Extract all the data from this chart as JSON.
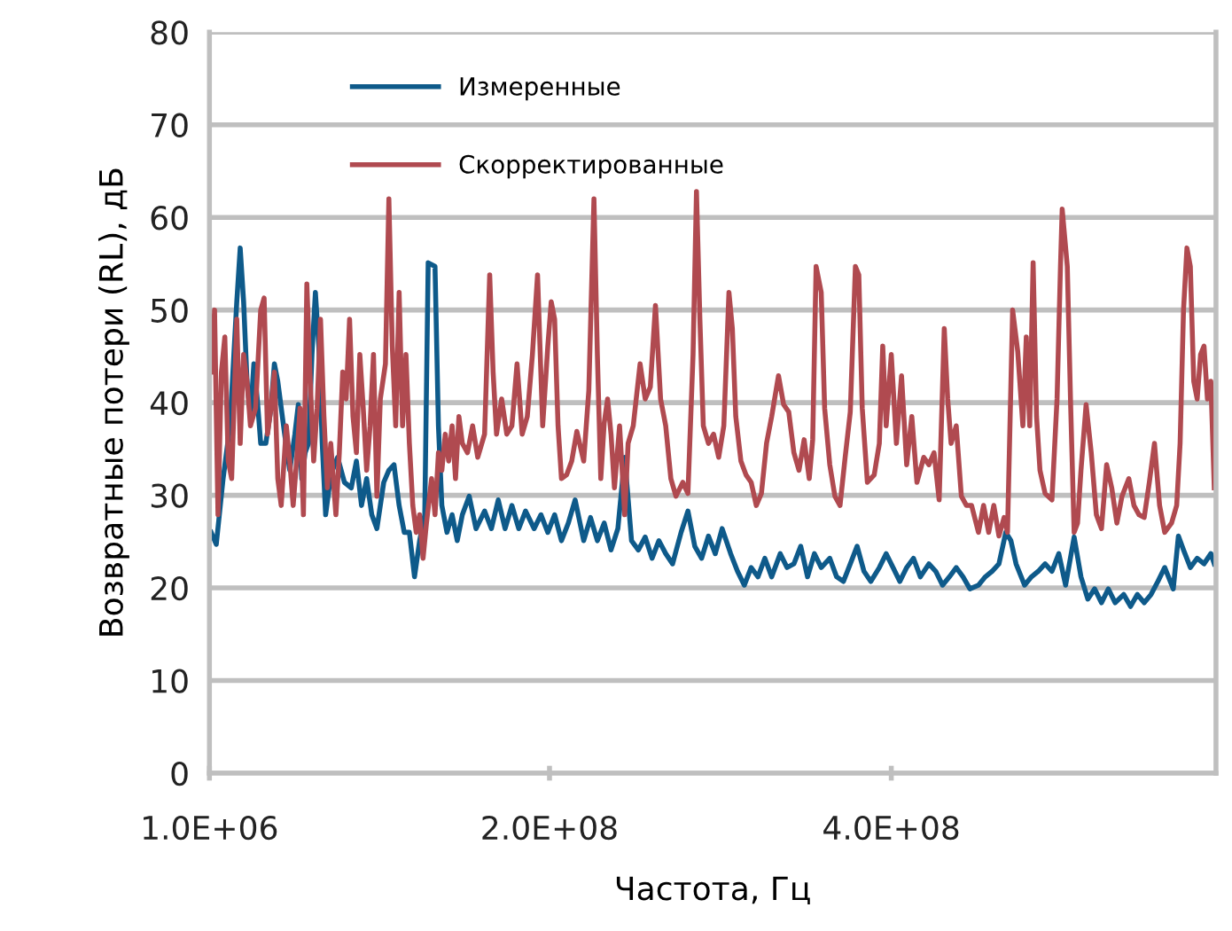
{
  "chart_data": {
    "type": "line",
    "xlabel": "Частота, Гц",
    "ylabel": "Возвратные потери (RL), дБ",
    "xlim": [
      1000000.0,
      590000000.0
    ],
    "xticks": [
      {
        "value": 1000000.0,
        "label": "1.0E+06"
      },
      {
        "value": 200000000.0,
        "label": "2.0E+08"
      },
      {
        "value": 400000000.0,
        "label": "4.0E+08"
      }
    ],
    "ylim": [
      0,
      80
    ],
    "yticks": [
      0,
      10,
      20,
      30,
      40,
      50,
      60,
      70,
      80
    ],
    "grid": "y",
    "legend": "top",
    "marker": "none",
    "line_style": "solid",
    "series": [
      {
        "name": "Измеренные",
        "color": "#0e5a8a",
        "x": [
          2000000.0,
          5000000.0,
          9000000.0,
          13000000.0,
          17000000.0,
          19000000.0,
          21000000.0,
          23000000.0,
          25000000.0,
          27000000.0,
          29000000.0,
          31000000.0,
          34000000.0,
          37000000.0,
          39000000.0,
          41000000.0,
          45000000.0,
          48000000.0,
          51000000.0,
          53000000.0,
          55000000.0,
          57000000.0,
          59000000.0,
          61000000.0,
          63000000.0,
          65000000.0,
          67000000.0,
          69000000.0,
          72000000.0,
          76000000.0,
          80000000.0,
          84000000.0,
          87000000.0,
          90000000.0,
          93000000.0,
          96000000.0,
          99000000.0,
          103000000.0,
          106000000.0,
          109000000.0,
          112000000.0,
          115000000.0,
          118000000.0,
          121000000.0,
          124000000.0,
          127000000.0,
          129000000.0,
          133000000.0,
          135000000.0,
          137000000.0,
          140000000.0,
          143000000.0,
          146000000.0,
          149000000.0,
          153000000.0,
          157000000.0,
          162000000.0,
          166000000.0,
          170000000.0,
          174000000.0,
          178000000.0,
          182000000.0,
          186000000.0,
          191000000.0,
          195000000.0,
          199000000.0,
          203000000.0,
          207000000.0,
          211000000.0,
          215000000.0,
          220000000.0,
          224000000.0,
          228000000.0,
          232000000.0,
          236000000.0,
          240000000.0,
          244000000.0,
          248000000.0,
          252000000.0,
          256000000.0,
          260000000.0,
          264000000.0,
          268000000.0,
          272000000.0,
          277000000.0,
          281000000.0,
          285000000.0,
          289000000.0,
          293000000.0,
          297000000.0,
          301000000.0,
          306000000.0,
          310000000.0,
          314000000.0,
          318000000.0,
          322000000.0,
          326000000.0,
          330000000.0,
          335000000.0,
          339000000.0,
          343000000.0,
          347000000.0,
          351000000.0,
          355000000.0,
          359000000.0,
          364000000.0,
          368000000.0,
          372000000.0,
          376000000.0,
          380000000.0,
          384000000.0,
          388000000.0,
          393000000.0,
          397000000.0,
          401000000.0,
          405000000.0,
          409000000.0,
          413000000.0,
          417000000.0,
          422000000.0,
          426000000.0,
          430000000.0,
          434000000.0,
          438000000.0,
          442000000.0,
          446000000.0,
          451000000.0,
          455000000.0,
          459000000.0,
          463000000.0,
          467000000.0,
          470000000.0,
          473000000.0,
          478000000.0,
          482000000.0,
          486000000.0,
          490000000.0,
          494000000.0,
          498000000.0,
          502000000.0,
          507000000.0,
          511000000.0,
          515000000.0,
          519000000.0,
          523000000.0,
          527000000.0,
          531000000.0,
          536000000.0,
          540000000.0,
          544000000.0,
          548000000.0,
          552000000.0,
          556000000.0,
          560000000.0,
          565000000.0,
          568000000.0,
          571000000.0,
          575000000.0,
          579000000.0,
          583000000.0,
          587000000.0,
          589000000.0
        ],
        "values": [
          26.0,
          24.7,
          31.8,
          37.5,
          50.9,
          56.7,
          50.9,
          42.3,
          38.5,
          44.2,
          40.4,
          35.6,
          35.6,
          39.4,
          44.2,
          42.3,
          36.6,
          32.7,
          36.6,
          39.8,
          31.8,
          34.6,
          35.6,
          45.2,
          51.9,
          46.1,
          35.6,
          27.9,
          32.2,
          34.1,
          31.4,
          30.8,
          33.7,
          28.9,
          31.8,
          27.9,
          26.4,
          31.4,
          32.7,
          33.3,
          28.9,
          26.0,
          26.0,
          21.2,
          25.1,
          27.9,
          55.1,
          54.7,
          37.5,
          28.9,
          26.0,
          27.9,
          25.1,
          27.9,
          29.9,
          26.4,
          28.3,
          26.4,
          29.5,
          26.4,
          28.9,
          26.4,
          28.3,
          26.4,
          27.9,
          26.0,
          27.9,
          25.1,
          27.0,
          29.5,
          25.1,
          27.6,
          25.1,
          27.0,
          24.1,
          26.4,
          34.1,
          25.1,
          24.1,
          25.5,
          23.2,
          25.1,
          23.7,
          22.6,
          26.0,
          28.3,
          24.5,
          23.2,
          25.6,
          23.7,
          26.4,
          23.7,
          21.8,
          20.3,
          22.2,
          21.2,
          23.2,
          21.2,
          23.7,
          22.2,
          22.6,
          24.5,
          21.2,
          23.7,
          22.2,
          23.2,
          21.2,
          20.7,
          22.6,
          24.5,
          21.8,
          20.7,
          22.2,
          23.7,
          22.2,
          20.7,
          22.2,
          23.2,
          21.2,
          22.6,
          21.8,
          20.3,
          21.2,
          22.2,
          21.2,
          19.9,
          20.3,
          21.2,
          21.8,
          22.6,
          26.0,
          25.1,
          22.6,
          20.3,
          21.2,
          21.8,
          22.6,
          21.8,
          23.7,
          20.3,
          25.5,
          21.2,
          18.8,
          19.9,
          18.4,
          19.9,
          18.4,
          19.3,
          18.0,
          19.3,
          18.4,
          19.3,
          20.7,
          22.2,
          19.9,
          25.6,
          24.1,
          22.2,
          23.2,
          22.6,
          23.7,
          22.6
        ]
      },
      {
        "name": "Скорректированные",
        "color": "#b04a50",
        "x": [
          2000000.0,
          4000000.0,
          6000000.0,
          8000000.0,
          10000000.0,
          12000000.0,
          14000000.0,
          17000000.0,
          19000000.0,
          21000000.0,
          23000000.0,
          25000000.0,
          28000000.0,
          31000000.0,
          33000000.0,
          35000000.0,
          37000000.0,
          39000000.0,
          41000000.0,
          43000000.0,
          46000000.0,
          48000000.0,
          50000000.0,
          52000000.0,
          54000000.0,
          56000000.0,
          58000000.0,
          60000000.0,
          62000000.0,
          64000000.0,
          66000000.0,
          68000000.0,
          70000000.0,
          72000000.0,
          75000000.0,
          77000000.0,
          79000000.0,
          81000000.0,
          83000000.0,
          85000000.0,
          87000000.0,
          89000000.0,
          91000000.0,
          93000000.0,
          95000000.0,
          97000000.0,
          99000000.0,
          101000000.0,
          104000000.0,
          106000000.0,
          108000000.0,
          110000000.0,
          112000000.0,
          114000000.0,
          116000000.0,
          118000000.0,
          120000000.0,
          122000000.0,
          124000000.0,
          126000000.0,
          128000000.0,
          131000000.0,
          133000000.0,
          135000000.0,
          137000000.0,
          139000000.0,
          141000000.0,
          143000000.0,
          145000000.0,
          147000000.0,
          149000000.0,
          152000000.0,
          155000000.0,
          158000000.0,
          162000000.0,
          165000000.0,
          167000000.0,
          169000000.0,
          172000000.0,
          175000000.0,
          178000000.0,
          181000000.0,
          184000000.0,
          187000000.0,
          190000000.0,
          193000000.0,
          196000000.0,
          199000000.0,
          201000000.0,
          203000000.0,
          205000000.0,
          207000000.0,
          210000000.0,
          213000000.0,
          216000000.0,
          220000000.0,
          223000000.0,
          226000000.0,
          228000000.0,
          230000000.0,
          232000000.0,
          234000000.0,
          236000000.0,
          238000000.0,
          241000000.0,
          244000000.0,
          246000000.0,
          249000000.0,
          253000000.0,
          256000000.0,
          259000000.0,
          262000000.0,
          265000000.0,
          268000000.0,
          271000000.0,
          274000000.0,
          278000000.0,
          281000000.0,
          284000000.0,
          286000000.0,
          288000000.0,
          290000000.0,
          293000000.0,
          296000000.0,
          299000000.0,
          302000000.0,
          305000000.0,
          307000000.0,
          309000000.0,
          312000000.0,
          315000000.0,
          318000000.0,
          321000000.0,
          324000000.0,
          327000000.0,
          330000000.0,
          334000000.0,
          337000000.0,
          340000000.0,
          343000000.0,
          346000000.0,
          349000000.0,
          352000000.0,
          354000000.0,
          356000000.0,
          359000000.0,
          361000000.0,
          364000000.0,
          367000000.0,
          370000000.0,
          373000000.0,
          376000000.0,
          379000000.0,
          381000000.0,
          383000000.0,
          386000000.0,
          390000000.0,
          393000000.0,
          395000000.0,
          397000000.0,
          400000000.0,
          403000000.0,
          406000000.0,
          409000000.0,
          412000000.0,
          415000000.0,
          419000000.0,
          422000000.0,
          425000000.0,
          428000000.0,
          431000000.0,
          433000000.0,
          435000000.0,
          438000000.0,
          441000000.0,
          444000000.0,
          447000000.0,
          451000000.0,
          454000000.0,
          457000000.0,
          460000000.0,
          463000000.0,
          466000000.0,
          468000000.0,
          471000000.0,
          474000000.0,
          477000000.0,
          479000000.0,
          481000000.0,
          483000000.0,
          485000000.0,
          487000000.0,
          490000000.0,
          494000000.0,
          497000000.0,
          499000000.0,
          500000000.0,
          503000000.0,
          505000000.0,
          507000000.0,
          509000000.0,
          511000000.0,
          514000000.0,
          517000000.0,
          520000000.0,
          523000000.0,
          526000000.0,
          529000000.0,
          532000000.0,
          535000000.0,
          539000000.0,
          542000000.0,
          545000000.0,
          548000000.0,
          551000000.0,
          554000000.0,
          557000000.0,
          560000000.0,
          564000000.0,
          567000000.0,
          569000000.0,
          571000000.0,
          573000000.0,
          575000000.0,
          577000000.0,
          579000000.0,
          581000000.0,
          583000000.0,
          585000000.0,
          587000000.0,
          589000000.0
        ],
        "values": [
          43.3,
          50.0,
          27.9,
          43.3,
          47.1,
          33.7,
          31.8,
          49.0,
          35.6,
          45.2,
          42.3,
          37.5,
          39.4,
          50.0,
          51.3,
          36.6,
          39.4,
          43.3,
          31.8,
          28.9,
          37.5,
          33.7,
          28.9,
          33.7,
          39.4,
          27.9,
          52.8,
          42.3,
          33.7,
          39.4,
          49.0,
          38.5,
          30.8,
          35.6,
          27.9,
          34.6,
          43.3,
          40.4,
          49.0,
          38.5,
          34.6,
          45.2,
          39.4,
          32.7,
          37.5,
          45.2,
          29.9,
          40.4,
          44.2,
          62.0,
          46.1,
          37.5,
          51.9,
          37.5,
          45.2,
          35.6,
          28.9,
          26.0,
          27.9,
          23.2,
          27.0,
          31.8,
          27.9,
          34.6,
          32.7,
          36.6,
          33.7,
          37.5,
          31.8,
          38.5,
          35.6,
          34.6,
          37.5,
          34.1,
          36.6,
          53.8,
          43.3,
          36.6,
          40.4,
          36.6,
          37.5,
          44.2,
          36.6,
          38.5,
          45.2,
          53.8,
          37.5,
          46.1,
          50.9,
          49.0,
          37.5,
          31.8,
          32.2,
          33.7,
          36.9,
          33.7,
          41.3,
          62.0,
          45.2,
          31.8,
          37.8,
          40.4,
          36.6,
          30.8,
          37.5,
          27.9,
          35.6,
          37.5,
          44.2,
          40.4,
          41.7,
          50.5,
          40.4,
          37.5,
          31.8,
          29.9,
          31.4,
          30.2,
          45.2,
          62.8,
          49.0,
          37.5,
          35.6,
          36.6,
          34.1,
          37.5,
          51.9,
          48.0,
          38.5,
          33.7,
          32.2,
          31.4,
          28.9,
          30.2,
          35.6,
          38.5,
          42.9,
          39.8,
          39.0,
          34.6,
          32.7,
          36.0,
          31.8,
          36.0,
          54.7,
          51.9,
          39.4,
          33.3,
          29.9,
          28.9,
          34.1,
          39.0,
          54.7,
          53.8,
          39.4,
          31.4,
          32.2,
          35.6,
          46.1,
          37.5,
          45.2,
          35.6,
          42.9,
          33.3,
          38.5,
          31.4,
          34.1,
          33.3,
          34.6,
          29.5,
          48.0,
          40.4,
          35.6,
          37.5,
          29.9,
          28.9,
          28.9,
          26.0,
          28.9,
          26.0,
          28.9,
          25.6,
          27.6,
          26.0,
          50.0,
          45.5,
          37.5,
          47.1,
          37.5,
          55.1,
          38.5,
          32.7,
          30.2,
          29.5,
          40.4,
          54.7,
          60.9,
          54.7,
          39.4,
          26.0,
          27.0,
          32.7,
          39.8,
          34.6,
          27.9,
          26.4,
          33.3,
          30.8,
          27.0,
          29.9,
          31.8,
          28.9,
          27.9,
          27.6,
          31.4,
          35.6,
          28.9,
          26.0,
          27.0,
          28.9,
          35.6,
          50.0,
          56.7,
          54.7,
          42.3,
          40.4,
          45.2,
          46.1,
          40.4,
          42.3,
          30.8
        ]
      }
    ]
  }
}
